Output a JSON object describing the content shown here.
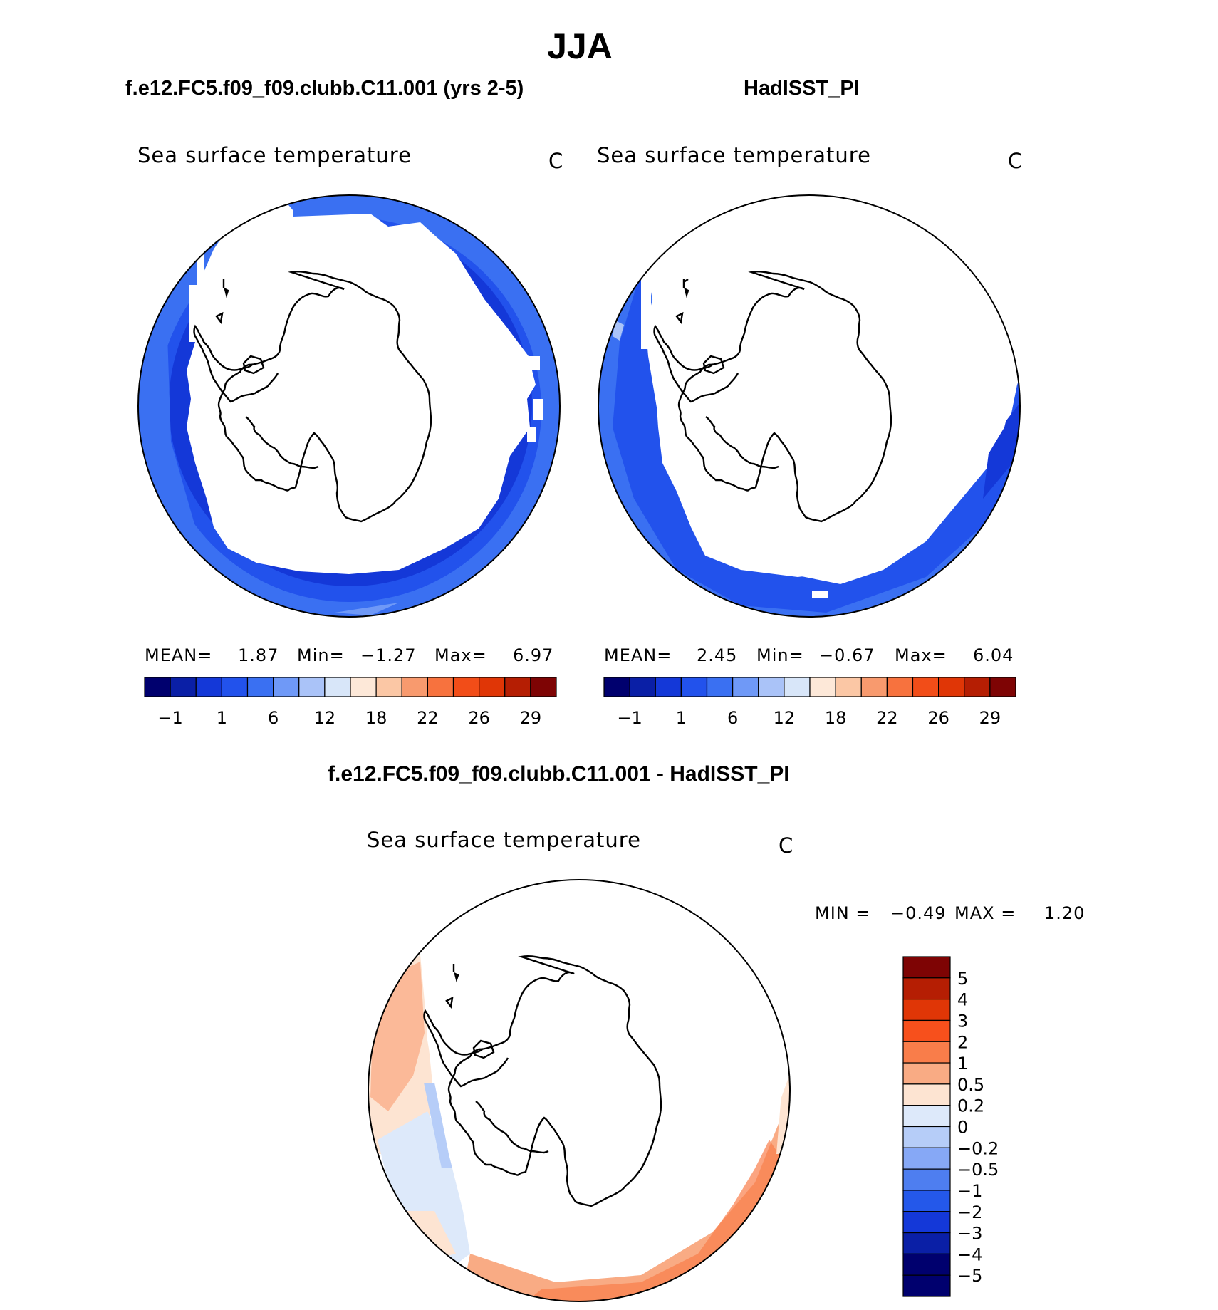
{
  "title": "JJA",
  "panels": [
    {
      "case_title": "f.e12.FC5.f09_f09.clubb.C11.001 (yrs 2-5)",
      "variable": "Sea surface temperature",
      "units": "C",
      "stats": {
        "mean_label": "MEAN=",
        "mean": "1.87",
        "min_label": "Min=",
        "min": "−1.27",
        "max_label": "Max=",
        "max": "6.97"
      },
      "colorbar_ticks": [
        "−1",
        "1",
        "6",
        "12",
        "18",
        "22",
        "26",
        "29"
      ]
    },
    {
      "case_title": "HadISST_PI",
      "variable": "Sea surface temperature",
      "units": "C",
      "stats": {
        "mean_label": "MEAN=",
        "mean": "2.45",
        "min_label": "Min=",
        "min": "−0.67",
        "max_label": "Max=",
        "max": "6.04"
      },
      "colorbar_ticks": [
        "−1",
        "1",
        "6",
        "12",
        "18",
        "22",
        "26",
        "29"
      ]
    }
  ],
  "diff_panel": {
    "title": "f.e12.FC5.f09_f09.clubb.C11.001 - HadISST_PI",
    "variable": "Sea surface temperature",
    "units": "C",
    "min_label": "MIN =",
    "min": "−0.49",
    "max_label": "MAX =",
    "max": "1.20",
    "colorbar_ticks": [
      "5",
      "4",
      "3",
      "2",
      "1",
      "0.5",
      "0.2",
      "0",
      "−0.2",
      "−0.5",
      "−1",
      "−2",
      "−3",
      "−4",
      "−5"
    ]
  },
  "colors": {
    "abs_scale": [
      "#00006e",
      "#0a1fa6",
      "#1438d8",
      "#2252ec",
      "#3a70f2",
      "#6f99f7",
      "#aac3f8",
      "#d8e6f9",
      "#fde8d8",
      "#fbc7a5",
      "#f89a6e",
      "#f7723e",
      "#f24d18",
      "#e03606",
      "#b51e03",
      "#7e0404"
    ],
    "diff_scale": [
      "#7e0404",
      "#b51e03",
      "#e03606",
      "#f7501c",
      "#f97d4a",
      "#f9ab84",
      "#fde4d2",
      "#dde9fa",
      "#b6cdf8",
      "#86a8f6",
      "#4e7ef0",
      "#2458ea",
      "#1438d8",
      "#0a1fa6",
      "#00006e"
    ]
  }
}
